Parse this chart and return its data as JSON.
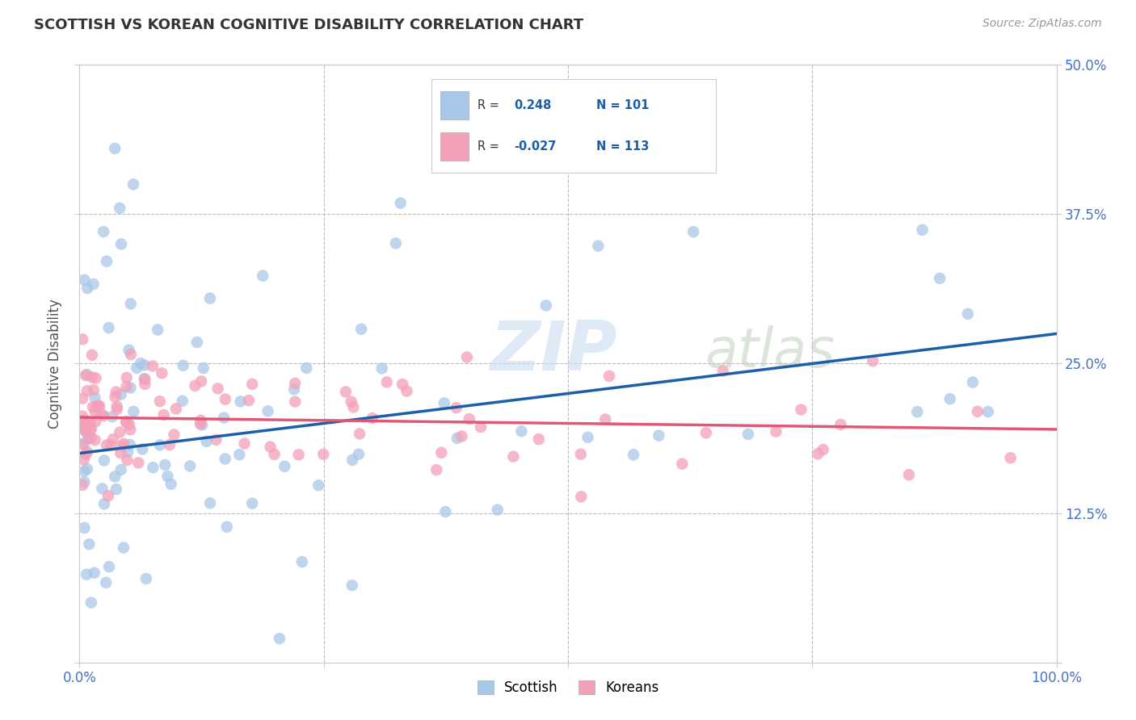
{
  "title": "SCOTTISH VS KOREAN COGNITIVE DISABILITY CORRELATION CHART",
  "source": "Source: ZipAtlas.com",
  "ylabel": "Cognitive Disability",
  "xlim": [
    0,
    1.0
  ],
  "ylim": [
    0.0,
    0.5
  ],
  "xticks": [
    0.0,
    0.25,
    0.5,
    0.75,
    1.0
  ],
  "xticklabels": [
    "0.0%",
    "",
    "",
    "",
    "100.0%"
  ],
  "yticks": [
    0.0,
    0.125,
    0.25,
    0.375,
    0.5
  ],
  "right_yticklabels": [
    "",
    "12.5%",
    "25.0%",
    "37.5%",
    "50.0%"
  ],
  "scottish_R": 0.248,
  "scottish_N": 101,
  "korean_R": -0.027,
  "korean_N": 113,
  "scottish_color": "#a8c8e8",
  "korean_color": "#f4a0b8",
  "scottish_line_color": "#1a5fa8",
  "korean_line_color": "#e05878",
  "background_color": "#ffffff",
  "grid_color": "#bbbbbb",
  "title_color": "#333333",
  "tick_color": "#4472c4",
  "watermark_zip_color": "#d0dff0",
  "watermark_atlas_color": "#d0d8d0",
  "scottish_line_start_y": 0.175,
  "scottish_line_end_y": 0.275,
  "korean_line_start_y": 0.205,
  "korean_line_end_y": 0.195
}
